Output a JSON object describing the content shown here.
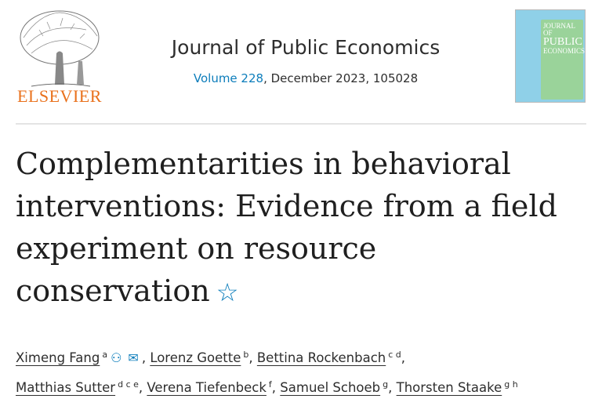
{
  "publisher": {
    "name": "ELSEVIER"
  },
  "journal": {
    "title": "Journal of Public Economics",
    "volume_link": "Volume 228",
    "issue_info": ", December 2023, 105028",
    "cover_text": "JOURNAL OF PUBLIC ECONOMICS"
  },
  "article": {
    "title": "Complementarities in behavioral interventions: Evidence from a field experiment on resource conservation",
    "star_icon": "star-icon"
  },
  "authors": [
    {
      "name": "Ximeng Fang",
      "aff": "a"
    },
    {
      "name": "Lorenz Goette",
      "aff": "b"
    },
    {
      "name": "Bettina Rockenbach",
      "aff": "c d"
    },
    {
      "name": "Matthias Sutter",
      "aff": "d c e"
    },
    {
      "name": "Verena Tiefenbeck",
      "aff": "f"
    },
    {
      "name": "Samuel Schoeb",
      "aff": "g"
    },
    {
      "name": "Thorsten Staake",
      "aff": "g h"
    }
  ],
  "colors": {
    "link": "#0c7dbb",
    "brand": "#e9711c"
  }
}
